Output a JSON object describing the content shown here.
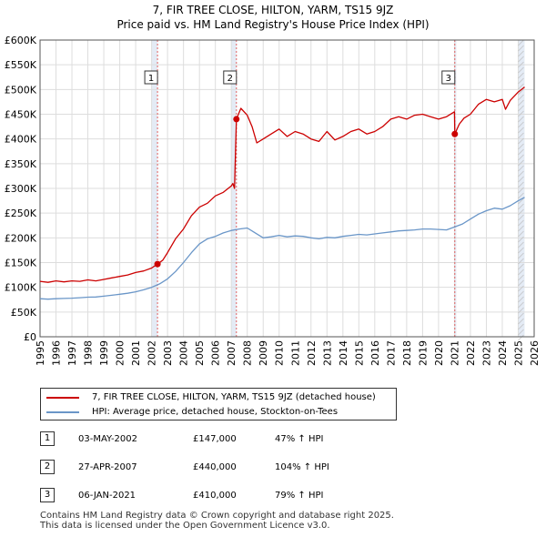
{
  "header": {
    "title_line1": "7, FIR TREE CLOSE, HILTON, YARM, TS15 9JZ",
    "title_line2": "Price paid vs. HM Land Registry's House Price Index (HPI)"
  },
  "chart_data": {
    "type": "line",
    "title": "7, FIR TREE CLOSE, HILTON, YARM, TS15 9JZ — Price paid vs. HM Land Registry's House Price Index (HPI)",
    "xlabel": "",
    "ylabel": "",
    "xlim": [
      1995,
      2026
    ],
    "ylim": [
      0,
      600000
    ],
    "y_ticks": [
      0,
      50000,
      100000,
      150000,
      200000,
      250000,
      300000,
      350000,
      400000,
      450000,
      500000,
      550000,
      600000
    ],
    "y_tick_labels": [
      "£0",
      "£50K",
      "£100K",
      "£150K",
      "£200K",
      "£250K",
      "£300K",
      "£350K",
      "£400K",
      "£450K",
      "£500K",
      "£550K",
      "£600K"
    ],
    "x_ticks": [
      1995,
      1996,
      1997,
      1998,
      1999,
      2000,
      2001,
      2002,
      2003,
      2004,
      2005,
      2006,
      2007,
      2008,
      2009,
      2010,
      2011,
      2012,
      2013,
      2014,
      2015,
      2016,
      2017,
      2018,
      2019,
      2020,
      2021,
      2022,
      2023,
      2024,
      2025,
      2026
    ],
    "x_tick_labels": [
      "1995",
      "1996",
      "1997",
      "1998",
      "1999",
      "2000",
      "2001",
      "2002",
      "2003",
      "2004",
      "2005",
      "2006",
      "2007",
      "2008",
      "2009",
      "2010",
      "2011",
      "2012",
      "2013",
      "2014",
      "2015",
      "2016",
      "2017",
      "2018",
      "2019",
      "2020",
      "2021",
      "2022",
      "2023",
      "2024",
      "2025",
      "2026"
    ],
    "grid": true,
    "shaded_regions": [
      [
        2002.0,
        2002.37
      ],
      [
        2007.0,
        2007.32
      ],
      [
        2021.0,
        2021.02
      ],
      [
        2025.0,
        2025.4
      ]
    ],
    "series": [
      {
        "name": "7, FIR TREE CLOSE, HILTON, YARM, TS15 9JZ (detached house)",
        "color": "#cc0000",
        "x": [
          1995,
          1995.5,
          1996,
          1996.5,
          1997,
          1997.5,
          1998,
          1998.5,
          1999,
          1999.5,
          2000,
          2000.5,
          2001,
          2001.5,
          2002,
          2002.37,
          2002.7,
          2003,
          2003.5,
          2004,
          2004.5,
          2005,
          2005.5,
          2006,
          2006.5,
          2007,
          2007.1,
          2007.2,
          2007.32,
          2007.6,
          2008,
          2008.3,
          2008.6,
          2009,
          2009.5,
          2010,
          2010.5,
          2011,
          2011.5,
          2012,
          2012.5,
          2013,
          2013.5,
          2014,
          2014.5,
          2015,
          2015.5,
          2016,
          2016.5,
          2017,
          2017.5,
          2018,
          2018.5,
          2019,
          2019.5,
          2020,
          2020.5,
          2021.0,
          2021.02,
          2021.3,
          2021.6,
          2022,
          2022.5,
          2023,
          2023.5,
          2024,
          2024.2,
          2024.5,
          2025,
          2025.4
        ],
        "values": [
          112000,
          110000,
          113000,
          111000,
          113000,
          112000,
          115000,
          113000,
          116000,
          119000,
          122000,
          125000,
          130000,
          133000,
          139000,
          147000,
          155000,
          170000,
          198000,
          218000,
          245000,
          262000,
          270000,
          285000,
          292000,
          305000,
          310000,
          300000,
          440000,
          462000,
          448000,
          425000,
          392000,
          400000,
          410000,
          420000,
          405000,
          415000,
          410000,
          400000,
          395000,
          415000,
          398000,
          405000,
          415000,
          420000,
          410000,
          415000,
          425000,
          440000,
          445000,
          440000,
          448000,
          450000,
          445000,
          440000,
          445000,
          455000,
          410000,
          430000,
          442000,
          450000,
          470000,
          480000,
          475000,
          480000,
          460000,
          478000,
          495000,
          505000
        ]
      },
      {
        "name": "HPI: Average price, detached house, Stockton-on-Tees",
        "color": "#6a96c8",
        "x": [
          1995,
          1995.5,
          1996,
          1996.5,
          1997,
          1997.5,
          1998,
          1998.5,
          1999,
          1999.5,
          2000,
          2000.5,
          2001,
          2001.5,
          2002,
          2002.5,
          2003,
          2003.5,
          2004,
          2004.5,
          2005,
          2005.5,
          2006,
          2006.5,
          2007,
          2007.5,
          2008,
          2008.5,
          2009,
          2009.5,
          2010,
          2010.5,
          2011,
          2011.5,
          2012,
          2012.5,
          2013,
          2013.5,
          2014,
          2014.5,
          2015,
          2015.5,
          2016,
          2016.5,
          2017,
          2017.5,
          2018,
          2018.5,
          2019,
          2019.5,
          2020,
          2020.5,
          2021,
          2021.5,
          2022,
          2022.5,
          2023,
          2023.5,
          2024,
          2024.5,
          2025,
          2025.4
        ],
        "values": [
          77000,
          76000,
          77000,
          77500,
          78000,
          79000,
          80000,
          80500,
          82000,
          84000,
          86000,
          88000,
          91000,
          95000,
          100000,
          107000,
          117000,
          132000,
          150000,
          170000,
          188000,
          198000,
          203000,
          210000,
          215000,
          218000,
          220000,
          210000,
          200000,
          202000,
          205000,
          202000,
          204000,
          203000,
          200000,
          198000,
          201000,
          200000,
          203000,
          205000,
          207000,
          206000,
          208000,
          210000,
          212000,
          214000,
          215000,
          216000,
          218000,
          218000,
          217000,
          216000,
          222000,
          228000,
          238000,
          248000,
          255000,
          260000,
          258000,
          265000,
          275000,
          282000
        ]
      }
    ],
    "sales": [
      {
        "num": "1",
        "x": 2002.37,
        "value": 147000
      },
      {
        "num": "2",
        "x": 2007.32,
        "value": 440000
      },
      {
        "num": "3",
        "x": 2021.02,
        "value": 410000
      }
    ]
  },
  "legend": {
    "property_label": "7, FIR TREE CLOSE, HILTON, YARM, TS15 9JZ (detached house)",
    "hpi_label": "HPI: Average price, detached house, Stockton-on-Tees"
  },
  "sales_table": [
    {
      "num": "1",
      "date": "03-MAY-2002",
      "price": "£147,000",
      "hpi": "47% ↑ HPI"
    },
    {
      "num": "2",
      "date": "27-APR-2007",
      "price": "£440,000",
      "hpi": "104% ↑ HPI"
    },
    {
      "num": "3",
      "date": "06-JAN-2021",
      "price": "£410,000",
      "hpi": "79% ↑ HPI"
    }
  ],
  "footer": {
    "line1": "Contains HM Land Registry data © Crown copyright and database right 2025.",
    "line2": "This data is licensed under the Open Government Licence v3.0."
  }
}
